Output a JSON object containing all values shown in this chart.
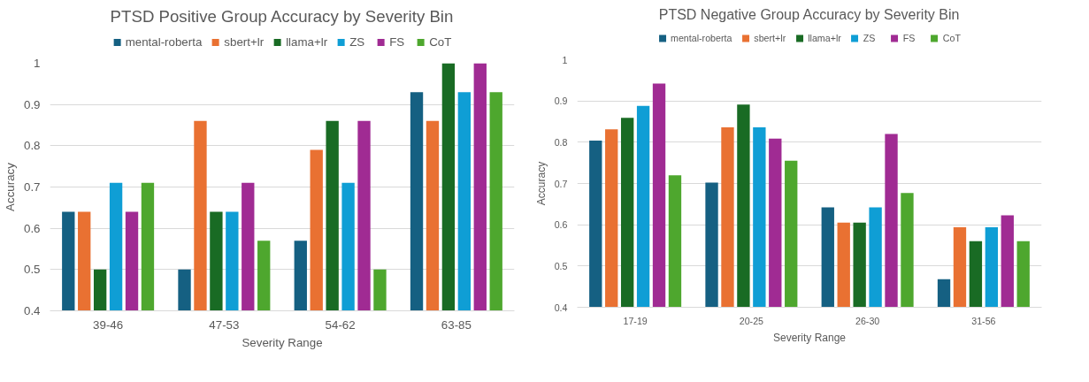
{
  "chart_data": [
    {
      "type": "bar",
      "title": "PTSD Positive Group Accuracy by Severity Bin",
      "xlabel": "Severity Range",
      "ylabel": "Accuracy",
      "categories": [
        "39-46",
        "47-53",
        "54-62",
        "63-85"
      ],
      "ylim": [
        0.4,
        1
      ],
      "yticks": [
        0.4,
        0.5,
        0.6,
        0.7,
        0.8,
        0.9,
        1
      ],
      "grid": "y",
      "legend": "top",
      "series": [
        {
          "name": "mental-roberta",
          "color": "#156082",
          "values": [
            0.64,
            0.5,
            0.57,
            0.93
          ]
        },
        {
          "name": "sbert+lr",
          "color": "#e97132",
          "values": [
            0.64,
            0.86,
            0.79,
            0.86
          ]
        },
        {
          "name": "llama+lr",
          "color": "#196b24",
          "values": [
            0.5,
            0.64,
            0.86,
            1.0
          ]
        },
        {
          "name": "ZS",
          "color": "#0f9ed5",
          "values": [
            0.71,
            0.64,
            0.71,
            0.93
          ]
        },
        {
          "name": "FS",
          "color": "#a02b93",
          "values": [
            0.64,
            0.71,
            0.86,
            1.0
          ]
        },
        {
          "name": "CoT",
          "color": "#4ea72e",
          "values": [
            0.71,
            0.57,
            0.5,
            0.93
          ]
        }
      ]
    },
    {
      "type": "bar",
      "title": "PTSD Negative Group Accuracy by Severity Bin",
      "xlabel": "Severity Range",
      "ylabel": "Accuracy",
      "categories": [
        "17-19",
        "20-25",
        "26-30",
        "31-56"
      ],
      "ylim": [
        0.4,
        1
      ],
      "yticks": [
        0.4,
        0.5,
        0.6,
        0.7,
        0.8,
        0.9,
        1
      ],
      "grid": "y",
      "legend": "top",
      "series": [
        {
          "name": "mental-roberta",
          "color": "#156082",
          "values": [
            0.804,
            0.702,
            0.642,
            0.468
          ]
        },
        {
          "name": "sbert+lr",
          "color": "#e97132",
          "values": [
            0.831,
            0.836,
            0.605,
            0.594
          ]
        },
        {
          "name": "llama+lr",
          "color": "#196b24",
          "values": [
            0.859,
            0.891,
            0.605,
            0.56
          ]
        },
        {
          "name": "ZS",
          "color": "#0f9ed5",
          "values": [
            0.888,
            0.836,
            0.642,
            0.594
          ]
        },
        {
          "name": "FS",
          "color": "#a02b93",
          "values": [
            0.942,
            0.809,
            0.82,
            0.623
          ]
        },
        {
          "name": "CoT",
          "color": "#4ea72e",
          "values": [
            0.72,
            0.755,
            0.677,
            0.56
          ]
        }
      ]
    }
  ]
}
